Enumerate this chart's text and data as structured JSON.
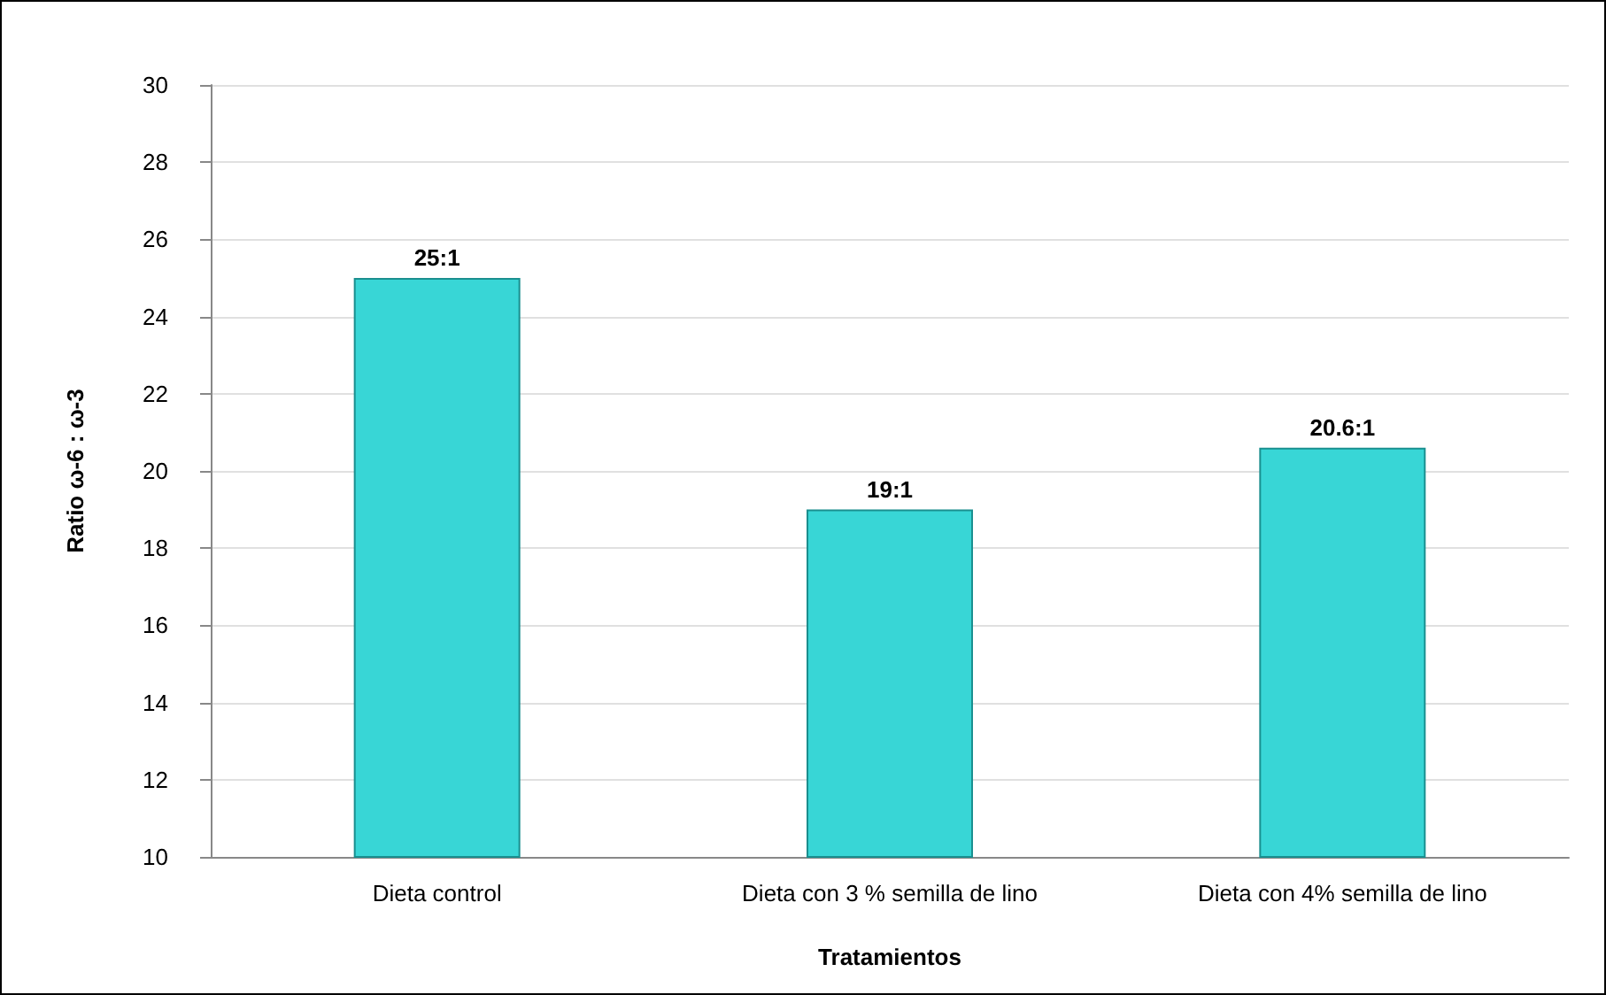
{
  "chart_data": {
    "type": "bar",
    "xlabel": "Tratamientos",
    "ylabel": "Ratio ω-6 : ω-3",
    "categories": [
      "Dieta control",
      "Dieta con 3 % semilla de lino",
      "Dieta con 4% semilla de lino"
    ],
    "values": [
      25,
      19,
      20.6
    ],
    "color": "#38d6d6",
    "value_labels": [
      "25:1",
      "19:1",
      "20.6:1"
    ],
    "ylim": [
      10,
      30
    ],
    "yticks": [
      10,
      12,
      14,
      16,
      18,
      20,
      22,
      24,
      26,
      28,
      30
    ],
    "grid": "y"
  }
}
